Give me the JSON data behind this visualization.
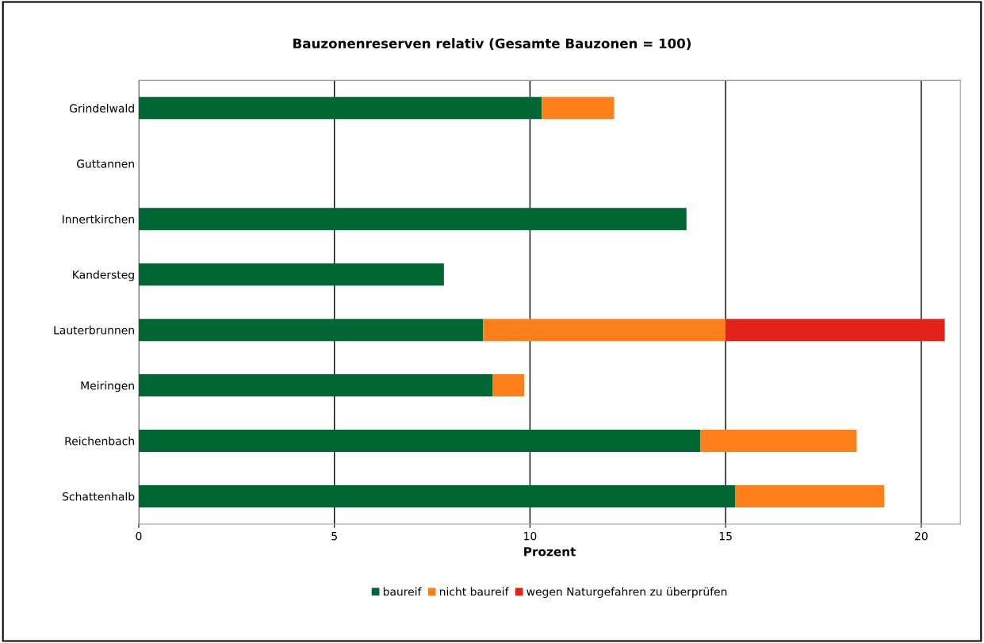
{
  "chart_data": {
    "type": "bar",
    "orientation": "horizontal",
    "stacked": true,
    "title": "Bauzonenreserven relativ (Gesamte Bauzonen = 100)",
    "xlabel": "Prozent",
    "categories": [
      "Grindelwald",
      "Guttannen",
      "Innertkirchen",
      "Kandersteg",
      "Lauterbrunnen",
      "Meiringen",
      "Reichenbach",
      "Schattenhalb"
    ],
    "series": [
      {
        "name": "baureif",
        "color": "#006633",
        "values": [
          10.3,
          0,
          14.0,
          7.8,
          8.8,
          9.05,
          14.35,
          15.25
        ]
      },
      {
        "name": "nicht baureif",
        "color": "#ff7f1a",
        "values": [
          1.85,
          0,
          0,
          0,
          6.2,
          0.8,
          4.0,
          3.8
        ]
      },
      {
        "name": "wegen Naturgefahren zu überprüfen",
        "color": "#e2231a",
        "values": [
          0,
          0,
          0,
          0,
          5.6,
          0,
          0,
          0
        ]
      }
    ],
    "xlim": [
      0,
      21
    ],
    "xticks": [
      0,
      5,
      10,
      15,
      20
    ],
    "grid": "x",
    "legend": "bottom"
  }
}
